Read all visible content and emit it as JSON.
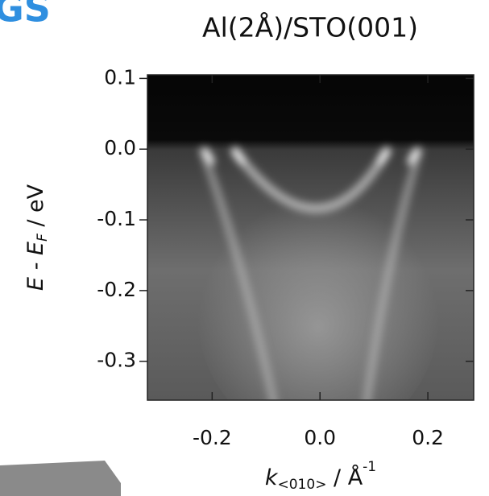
{
  "chart_data": {
    "type": "image",
    "title": "Al(2Å)/STO(001)",
    "corner_text": "GS",
    "xlabel": {
      "main": "k",
      "sub": "<010>",
      "rest": " / Å",
      "sup": "-1"
    },
    "ylabel": {
      "main": "E - E",
      "sub": "F",
      "rest": "  / eV"
    },
    "xlim": [
      -0.32,
      0.285
    ],
    "ylim": [
      -0.355,
      0.105
    ],
    "xticks": [
      -0.2,
      {
        "value": 0,
        "label": "0.0"
      },
      0.2
    ],
    "yticks": [
      0.1,
      {
        "value": 0,
        "label": "0.0"
      },
      -0.1,
      -0.2,
      -0.3
    ]
  }
}
